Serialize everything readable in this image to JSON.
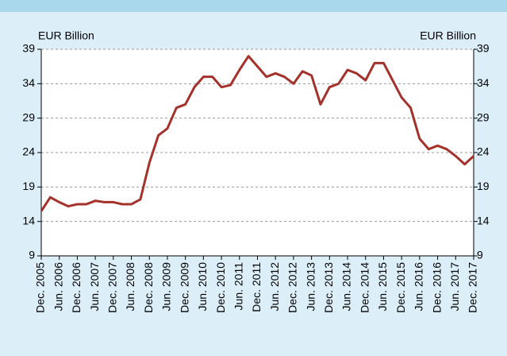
{
  "chart_data": {
    "type": "line",
    "y_label_left": "EUR Billion",
    "y_label_right": "EUR Billion",
    "categories": [
      "Dec. 2005",
      null,
      "Jun. 2006",
      null,
      "Dec. 2006",
      null,
      "Jun. 2007",
      null,
      "Dec. 2007",
      null,
      "Jun. 2008",
      null,
      "Dec. 2008",
      null,
      "Jun. 2009",
      null,
      "Dec. 2009",
      null,
      "Jun. 2010",
      null,
      "Dec. 2010",
      null,
      "Jun. 2011",
      null,
      "Dec. 2011",
      null,
      "Jun. 2012",
      null,
      "Dec. 2012",
      null,
      "Jun. 2013",
      null,
      "Dec. 2013",
      null,
      "Jun. 2014",
      null,
      "Dec. 2014",
      null,
      "Jun. 2015",
      null,
      "Dec. 2015",
      null,
      "Jun. 2016",
      null,
      "Dec. 2016",
      null,
      "Jun. 2017",
      null,
      "Dec. 2017"
    ],
    "series": [
      {
        "color": "#a5312b",
        "values": [
          15.5,
          17.5,
          16.8,
          16.2,
          16.5,
          16.5,
          17.0,
          16.8,
          16.8,
          16.5,
          16.5,
          17.2,
          22.5,
          26.5,
          27.5,
          30.5,
          31,
          33.5,
          35,
          35,
          33.5,
          33.8,
          36,
          38,
          36.5,
          35,
          35.5,
          35,
          34,
          35.8,
          35.2,
          31,
          33.5,
          34,
          36,
          35.5,
          34.5,
          37,
          37,
          34.5,
          32,
          30.5,
          26,
          24.5,
          25,
          24.5,
          23.5,
          22.3,
          23.5
        ]
      }
    ],
    "ylim": [
      9,
      39
    ],
    "yticks": [
      9,
      14,
      19,
      24,
      29,
      34,
      39
    ],
    "y2lim": [
      9,
      39
    ],
    "y2ticks": [
      9,
      14,
      19,
      24,
      29,
      34,
      39
    ],
    "grid": true
  }
}
